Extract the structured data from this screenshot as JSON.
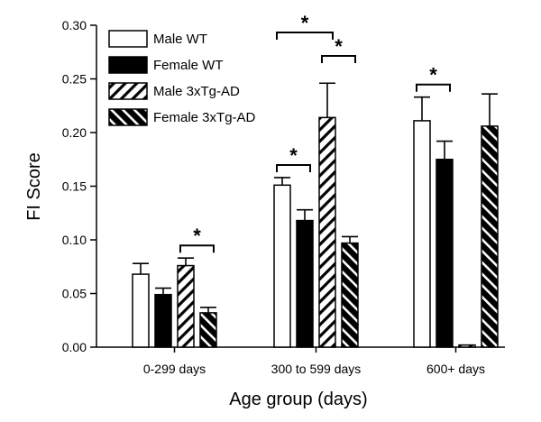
{
  "chart_data": {
    "type": "bar",
    "title": "",
    "xlabel": "Age group (days)",
    "ylabel": "FI Score",
    "ylim": [
      0,
      0.3
    ],
    "yticks": [
      "0.00",
      "0.05",
      "0.10",
      "0.15",
      "0.20",
      "0.25",
      "0.30"
    ],
    "categories": [
      "0-299 days",
      "300 to 599 days",
      "600+ days"
    ],
    "legend_position": "top-left",
    "series": [
      {
        "name": "Male WT",
        "pattern": "open",
        "values": [
          0.068,
          0.151,
          0.211
        ],
        "errors": [
          0.01,
          0.007,
          0.022
        ]
      },
      {
        "name": "Female WT",
        "pattern": "solid",
        "values": [
          0.049,
          0.118,
          0.175
        ],
        "errors": [
          0.006,
          0.01,
          0.017
        ]
      },
      {
        "name": "Male 3xTg-AD",
        "pattern": "hatch-forward",
        "values": [
          0.076,
          0.214,
          0.002
        ],
        "errors": [
          0.007,
          0.032,
          0.0
        ]
      },
      {
        "name": "Female 3xTg-AD",
        "pattern": "hatch-backward",
        "values": [
          0.032,
          0.097,
          0.206
        ],
        "errors": [
          0.005,
          0.006,
          0.03
        ]
      }
    ],
    "significance": [
      {
        "label": "*",
        "category": 0,
        "from_series": 2,
        "to_series": 3
      },
      {
        "label": "*",
        "category": 1,
        "from_series": 0,
        "to_series": 1
      },
      {
        "label": "*",
        "category": 1,
        "from_series": 2,
        "to_series": 3
      },
      {
        "label": "*",
        "category": 1,
        "from_series": 0,
        "to_series": 2
      },
      {
        "label": "*",
        "category": 2,
        "from_series": 0,
        "to_series": 1
      }
    ]
  },
  "colors": {
    "ink": "#000000",
    "open_fill": "#ffffff",
    "solid_fill": "#000000"
  }
}
